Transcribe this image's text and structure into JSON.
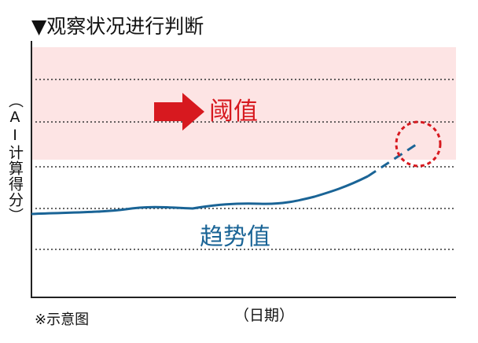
{
  "title": "▼观察状况进行判断",
  "y_axis_label": "（AI计算得分）",
  "threshold_label": "阈值",
  "trend_label": "趋势值",
  "note": "※示意图",
  "x_axis_label": "（日期）"
}
